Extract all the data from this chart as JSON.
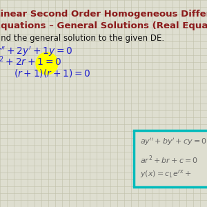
{
  "title_line1": "Linear Second Order Homogeneous Differential Equations",
  "title_line2": "Equations – General Solutions (Real Equal Roots)",
  "title_color": "#8B1A1A",
  "bg_color": "#deded0",
  "grid_color": "#c0c0aa",
  "main_text_color": "#111111",
  "blue_color": "#2222cc",
  "teal_color": "#00bbbb",
  "yellow_highlight": "#ffff00",
  "figsize": [
    3.0,
    3.0
  ],
  "dpi": 100
}
